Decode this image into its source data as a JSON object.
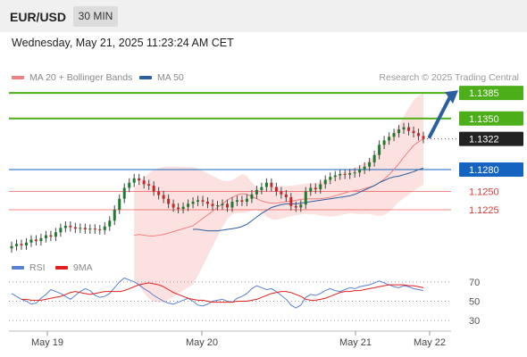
{
  "header": {
    "symbol": "EUR/USD",
    "timeframe": "30 MIN",
    "datetime": "Wednesday, May 21, 2025 11:23:24 AM CET"
  },
  "legend": {
    "ma20_label": "MA 20 + Bollinger Bands",
    "ma20_color": "#f08080",
    "ma50_label": "MA 50",
    "ma50_color": "#2c5fa0",
    "rsi_label": "RSI",
    "rsi_color": "#5b7fd4",
    "ma9_label": "9MA",
    "ma9_color": "#e02020"
  },
  "credit": "Research © 2025 Trading Central",
  "chart_data": {
    "type": "candlestick",
    "price_axis": {
      "min": 1.1165,
      "max": 1.1395
    },
    "current_price": "1.1322",
    "levels": [
      {
        "label": "1.1385",
        "value": 1.1385,
        "kind": "resistance",
        "color": "#4caf1a"
      },
      {
        "label": "1.1350",
        "value": 1.135,
        "kind": "resistance",
        "color": "#4caf1a"
      },
      {
        "label": "1.1280",
        "value": 1.128,
        "kind": "pivot",
        "color": "#1565c0"
      },
      {
        "label": "1.1250",
        "value": 1.125,
        "kind": "support",
        "color": "#e53935"
      },
      {
        "label": "1.1225",
        "value": 1.1225,
        "kind": "support",
        "color": "#e53935"
      }
    ],
    "target_arrow": {
      "from": 1.1325,
      "to": 1.1385
    },
    "x_ticks": [
      "May 19",
      "May 20",
      "May 21",
      "May 22"
    ],
    "closes": [
      1.1175,
      1.1178,
      1.1176,
      1.118,
      1.1184,
      1.1182,
      1.1186,
      1.119,
      1.1188,
      1.1194,
      1.12,
      1.1203,
      1.1201,
      1.1199,
      1.12,
      1.1198,
      1.1199,
      1.1198,
      1.1197,
      1.1202,
      1.121,
      1.1225,
      1.124,
      1.1255,
      1.1262,
      1.1268,
      1.1265,
      1.126,
      1.1258,
      1.125,
      1.1245,
      1.124,
      1.1233,
      1.1228,
      1.1226,
      1.1229,
      1.1233,
      1.1236,
      1.1238,
      1.1236,
      1.1233,
      1.123,
      1.1231,
      1.1233,
      1.1228,
      1.1236,
      1.1238,
      1.1236,
      1.124,
      1.1246,
      1.1252,
      1.1256,
      1.1262,
      1.1256,
      1.125,
      1.1246,
      1.1242,
      1.123,
      1.1228,
      1.1232,
      1.125,
      1.1255,
      1.1253,
      1.126,
      1.1266,
      1.127,
      1.1272,
      1.1274,
      1.1273,
      1.1275,
      1.1276,
      1.128,
      1.1284,
      1.129,
      1.13,
      1.1314,
      1.132,
      1.1325,
      1.133,
      1.1335,
      1.1338,
      1.1333,
      1.133,
      1.1326,
      1.1322
    ],
    "ma20_values": [
      1.119,
      1.1191,
      1.119,
      1.1189,
      1.1189,
      1.119,
      1.1191,
      1.1193,
      1.1195,
      1.1197,
      1.1199,
      1.1201,
      1.1203,
      1.1208,
      1.1213,
      1.1218,
      1.1223,
      1.1228,
      1.1233,
      1.1238,
      1.1242,
      1.1245,
      1.1247,
      1.1246,
      1.1243,
      1.124,
      1.1237,
      1.1235,
      1.1234,
      1.1234,
      1.1235,
      1.1236,
      1.1237,
      1.1238,
      1.1239,
      1.124,
      1.124,
      1.124,
      1.124,
      1.1241,
      1.1242,
      1.1244,
      1.1246,
      1.1248,
      1.125,
      1.1251,
      1.1252,
      1.1254,
      1.1256,
      1.1258,
      1.1262,
      1.1267,
      1.1273,
      1.128,
      1.1288,
      1.1297,
      1.1305,
      1.1313,
      1.1318,
      1.1322
    ],
    "ma50_values": [
      1.1198,
      1.1198,
      1.1197,
      1.1196,
      1.1196,
      1.1196,
      1.1197,
      1.1198,
      1.1199,
      1.12,
      1.1202,
      1.1205,
      1.121,
      1.1215,
      1.122,
      1.1224,
      1.1228,
      1.123,
      1.1232,
      1.1233,
      1.1233,
      1.1233,
      1.1234,
      1.1235,
      1.1236,
      1.1237,
      1.1238,
      1.1239,
      1.124,
      1.1241,
      1.1242,
      1.1243,
      1.1244,
      1.1246,
      1.1249,
      1.1252,
      1.1255,
      1.1258,
      1.1262,
      1.1265,
      1.1268,
      1.127,
      1.1271,
      1.1273,
      1.1275,
      1.1277,
      1.128,
      1.1282
    ],
    "rsi_axis": {
      "min": 20,
      "max": 80,
      "ticks": [
        "70",
        "50",
        "30"
      ]
    },
    "rsi_values": [
      58,
      55,
      52,
      50,
      47,
      48,
      53,
      57,
      62,
      60,
      58,
      55,
      52,
      56,
      60,
      63,
      61,
      56,
      54,
      55,
      58,
      64,
      70,
      74,
      72,
      70,
      67,
      63,
      60,
      56,
      53,
      50,
      48,
      47,
      49,
      51,
      53,
      50,
      46,
      45,
      47,
      50,
      51,
      52,
      50,
      49,
      53,
      55,
      58,
      63,
      66,
      64,
      62,
      63,
      60,
      56,
      52,
      46,
      43,
      46,
      54,
      57,
      56,
      58,
      61,
      63,
      61,
      60,
      62,
      64,
      63,
      65,
      66,
      67,
      69,
      71,
      69,
      67,
      65,
      64,
      66,
      65,
      63,
      62,
      61
    ],
    "ma9_values": [
      52,
      52,
      51,
      51,
      51,
      52,
      53,
      54,
      55,
      57,
      59,
      60,
      59,
      58,
      57,
      58,
      59,
      60,
      60,
      60,
      60,
      61,
      63,
      65,
      67,
      68,
      69,
      68,
      67,
      65,
      62,
      59,
      57,
      55,
      53,
      52,
      51,
      51,
      50,
      49,
      49,
      49,
      49,
      49,
      50,
      50,
      50,
      51,
      52,
      54,
      56,
      58,
      59,
      60,
      60,
      59,
      57,
      55,
      52,
      51,
      51,
      52,
      53,
      55,
      57,
      59,
      60,
      60,
      61,
      61,
      62,
      63,
      64,
      65,
      66,
      67,
      67,
      67,
      67,
      66,
      66,
      65,
      64
    ]
  }
}
